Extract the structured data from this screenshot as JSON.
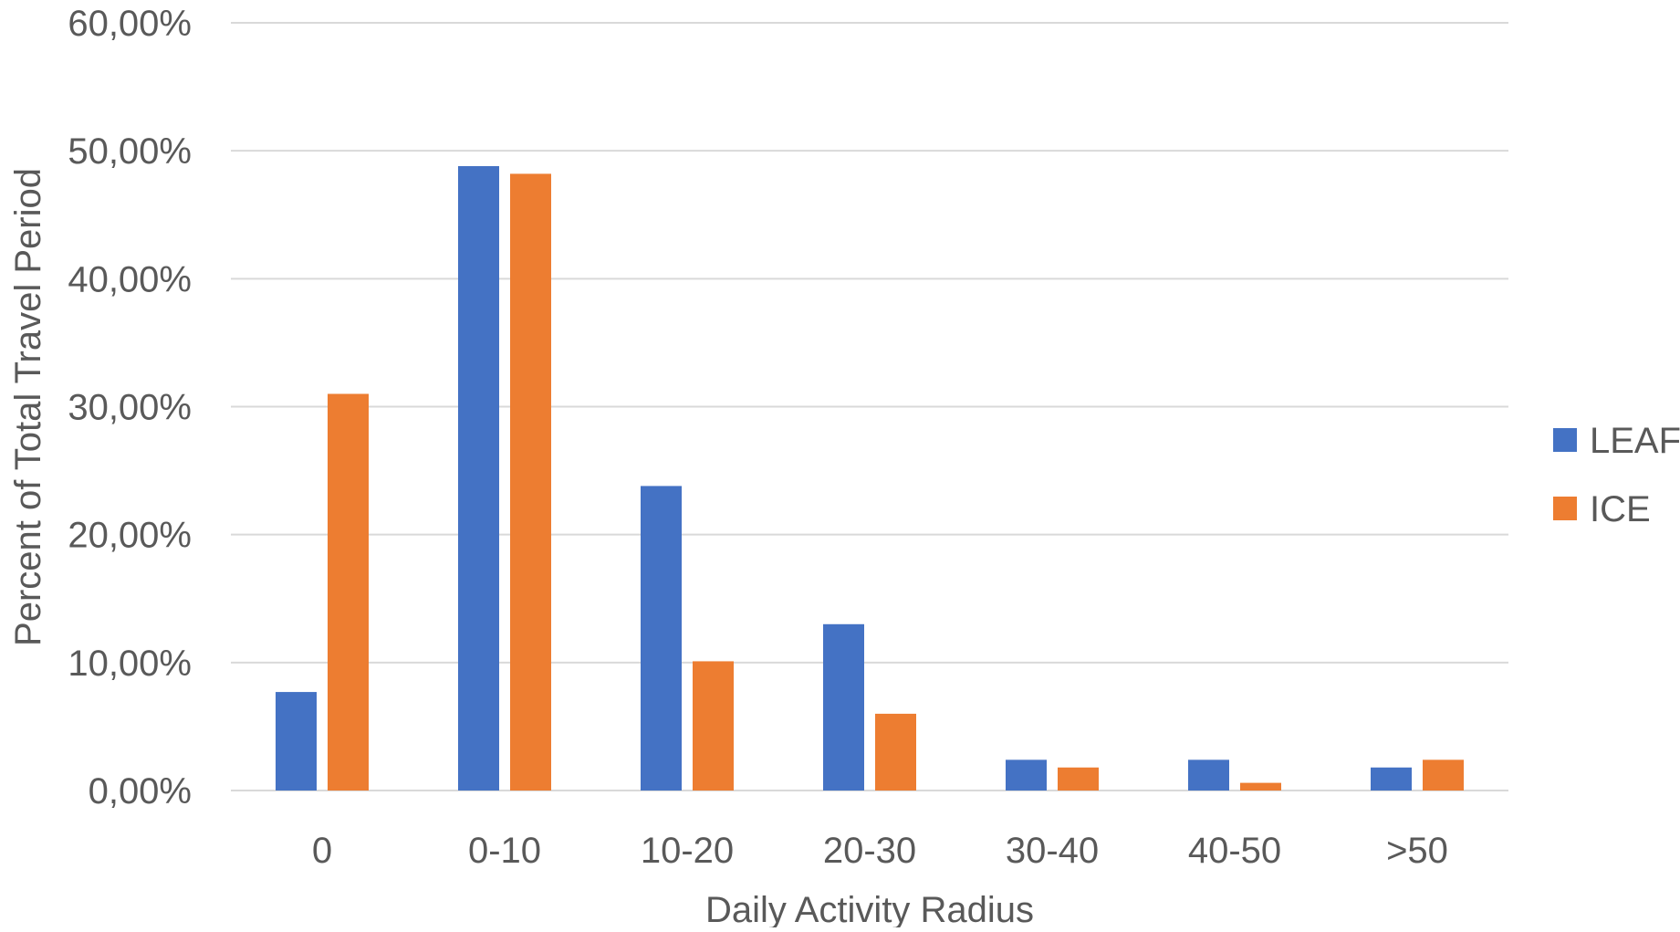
{
  "chart_data": {
    "type": "bar",
    "xlabel": "Daily Activity Radius",
    "ylabel": "Percent of Total Travel Period",
    "categories": [
      "0",
      "0-10",
      "10-20",
      "20-30",
      "30-40",
      "40-50",
      ">50"
    ],
    "series": [
      {
        "name": "LEAF",
        "color": "#4472C4",
        "values": [
          7.7,
          48.8,
          23.8,
          13.0,
          2.4,
          2.4,
          1.8
        ]
      },
      {
        "name": "ICE",
        "color": "#ED7D31",
        "values": [
          31.0,
          48.2,
          10.1,
          6.0,
          1.8,
          0.6,
          2.4
        ]
      }
    ],
    "ylim": [
      0,
      60
    ],
    "yticks": [
      0,
      10,
      20,
      30,
      40,
      50,
      60
    ],
    "ytick_labels": [
      "0,00%",
      "10,00%",
      "20,00%",
      "30,00%",
      "40,00%",
      "50,00%",
      "60,00%"
    ],
    "grid": true,
    "legend_position": "right",
    "gridline_color": "#D9D9D9",
    "text_color": "#595959"
  }
}
